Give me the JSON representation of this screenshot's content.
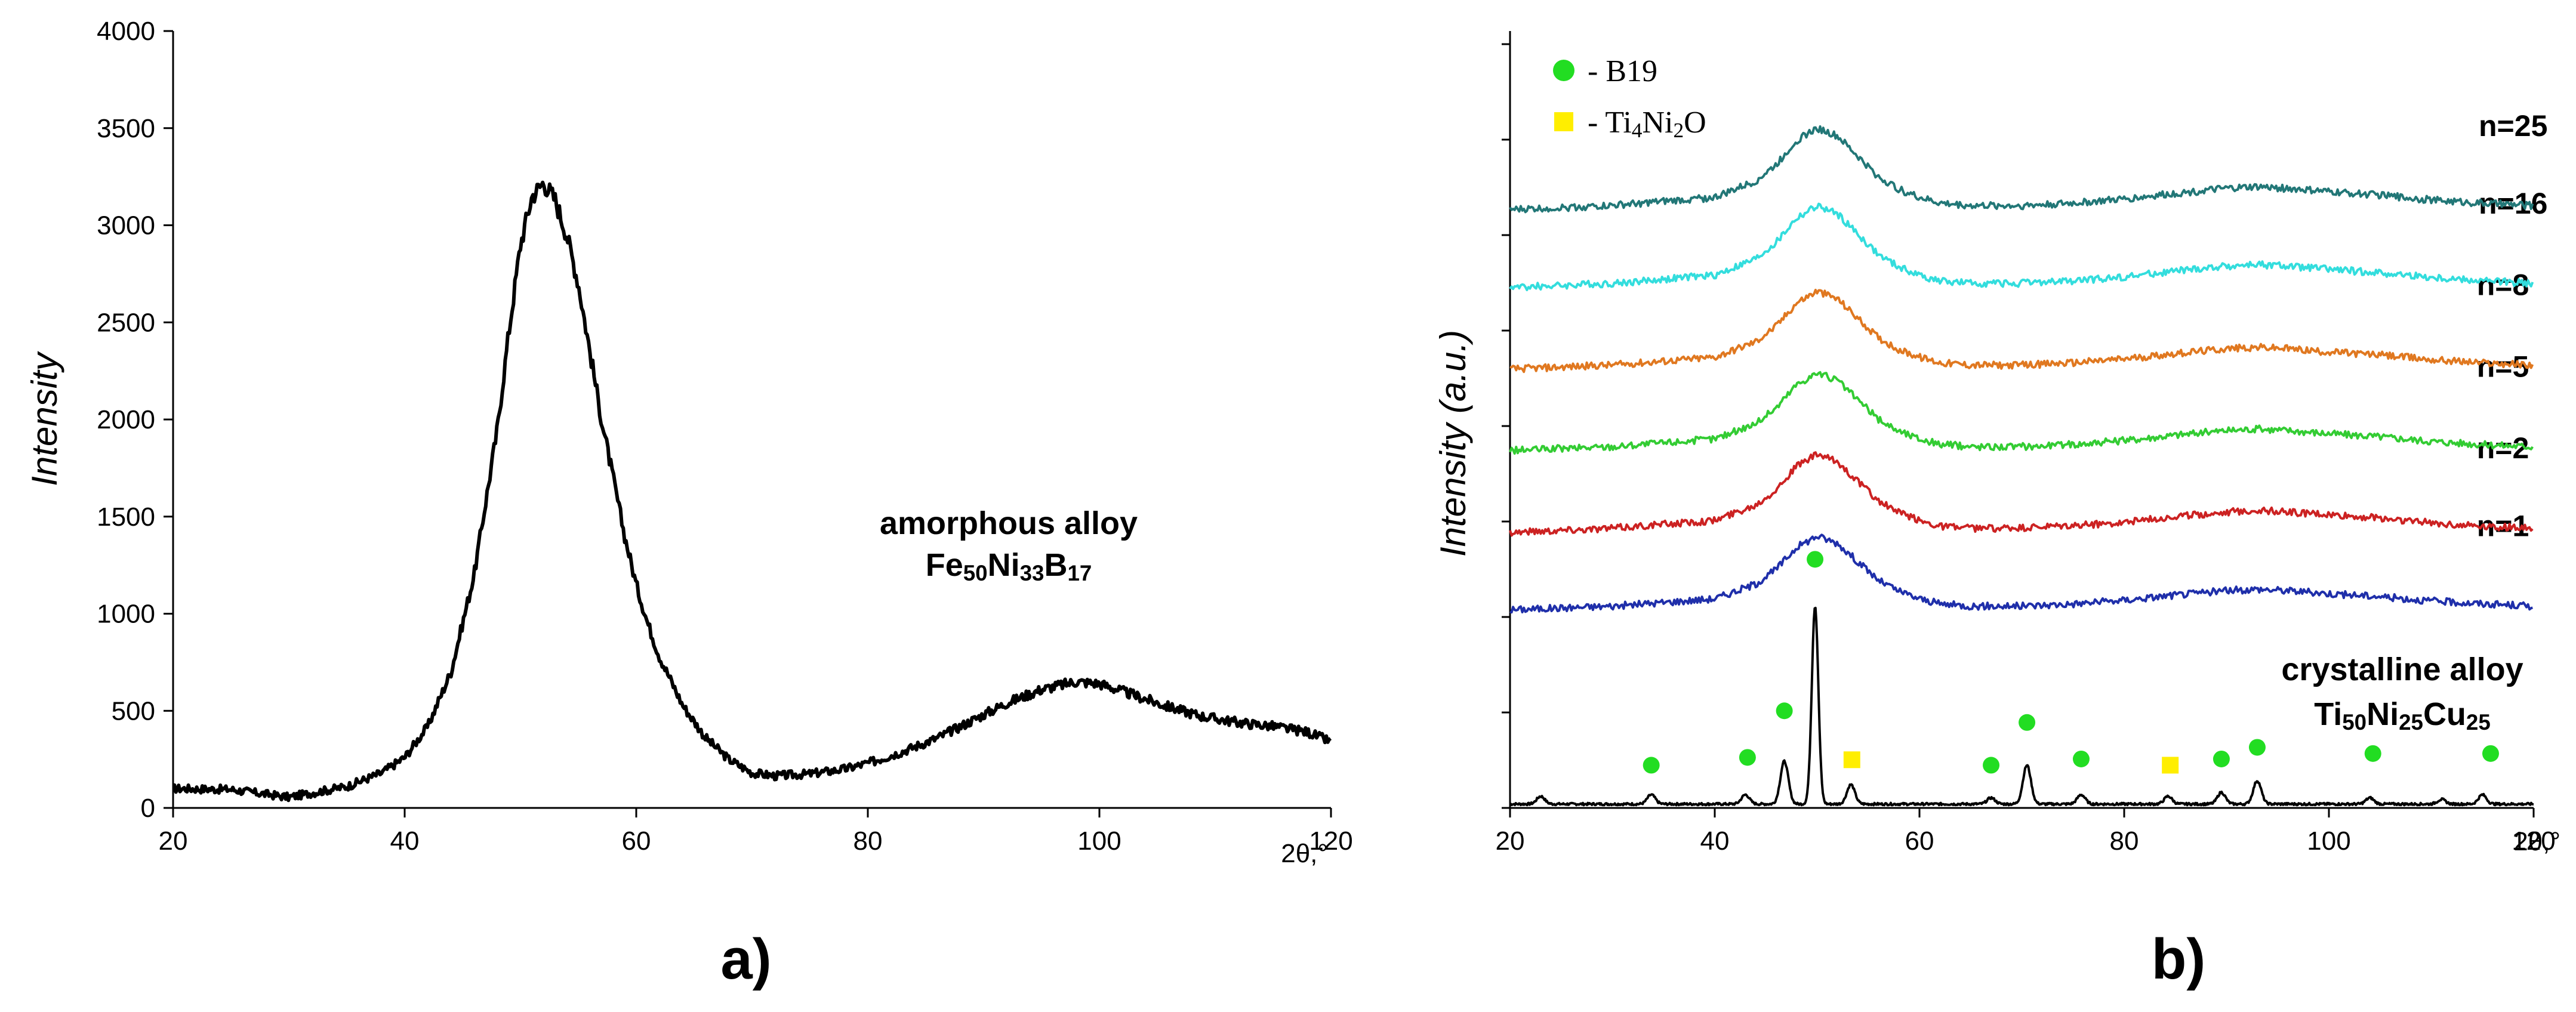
{
  "chart_data": [
    {
      "id": "a",
      "type": "line",
      "panel_label": "a)",
      "ylabel": "Intensity",
      "xlabel": "2θ,°",
      "xlim": [
        20,
        120
      ],
      "ylim": [
        0,
        4000
      ],
      "xticks": [
        20,
        40,
        60,
        80,
        100,
        120
      ],
      "yticks": [
        0,
        500,
        1000,
        1500,
        2000,
        2500,
        3000,
        3500,
        4000
      ],
      "annotation": {
        "line1": "amorphous alloy",
        "line2_parts": [
          {
            "text": "Fe",
            "sub": false
          },
          {
            "text": "50",
            "sub": true
          },
          {
            "text": "Ni",
            "sub": false
          },
          {
            "text": "33",
            "sub": true
          },
          {
            "text": "B",
            "sub": false
          },
          {
            "text": "17",
            "sub": true
          }
        ]
      },
      "series": [
        {
          "name": "Fe50Ni33B17",
          "color": "#000000",
          "x": [
            20,
            25,
            30,
            35,
            38,
            40,
            42,
            44,
            46,
            48,
            49,
            50,
            51,
            52,
            53,
            54,
            55,
            56,
            57,
            58,
            59,
            60,
            61,
            62,
            64,
            66,
            68,
            70,
            72,
            75,
            78,
            80,
            83,
            86,
            89,
            92,
            95,
            98,
            100,
            103,
            106,
            109,
            112,
            115,
            118,
            120
          ],
          "y": [
            100,
            95,
            55,
            110,
            180,
            260,
            420,
            700,
            1200,
            1950,
            2450,
            2900,
            3150,
            3220,
            3130,
            2950,
            2700,
            2350,
            2000,
            1700,
            1400,
            1150,
            950,
            780,
            530,
            360,
            250,
            180,
            165,
            175,
            200,
            230,
            290,
            360,
            450,
            540,
            610,
            650,
            640,
            580,
            520,
            470,
            440,
            420,
            390,
            340
          ]
        }
      ]
    },
    {
      "id": "b",
      "type": "line",
      "panel_label": "b)",
      "ylabel": "Intensity (a.u.)",
      "xlabel": "2θ,°",
      "xlim": [
        20,
        120
      ],
      "ylim": [
        0,
        10
      ],
      "xticks": [
        20,
        40,
        60,
        80,
        100,
        120
      ],
      "legend": [
        {
          "marker": "circle",
          "color": "#22dd22",
          "parts": [
            {
              "text": "- B19",
              "sub": false
            }
          ]
        },
        {
          "marker": "square",
          "color": "#ffee00",
          "parts": [
            {
              "text": "- Ti",
              "sub": false
            },
            {
              "text": "4",
              "sub": true
            },
            {
              "text": "Ni",
              "sub": false
            },
            {
              "text": "2",
              "sub": true
            },
            {
              "text": "O",
              "sub": false
            }
          ]
        }
      ],
      "annotation": {
        "line1": "crystalline alloy",
        "line2_parts": [
          {
            "text": "Ti",
            "sub": false
          },
          {
            "text": "50",
            "sub": true
          },
          {
            "text": "Ni",
            "sub": false
          },
          {
            "text": "25",
            "sub": true
          },
          {
            "text": "Cu",
            "sub": false
          },
          {
            "text": "25",
            "sub": true
          }
        ]
      },
      "amorphous_profile": {
        "x": [
          20,
          30,
          40,
          44,
          46,
          48,
          50,
          52,
          54,
          56,
          58,
          60,
          62,
          65,
          70,
          75,
          80,
          85,
          90,
          93,
          96,
          100,
          105,
          110,
          115,
          120
        ],
        "y": [
          0.0,
          0.05,
          0.15,
          0.35,
          0.55,
          0.85,
          1.0,
          0.9,
          0.65,
          0.4,
          0.25,
          0.15,
          0.08,
          0.05,
          0.05,
          0.08,
          0.13,
          0.2,
          0.26,
          0.28,
          0.26,
          0.22,
          0.18,
          0.12,
          0.08,
          0.05
        ]
      },
      "series": [
        {
          "name": "n=1",
          "label": "n=1",
          "color": "#1f2faa",
          "baseline": 2.55,
          "amplitude": 0.95,
          "label_x": 117
        },
        {
          "name": "n=2",
          "label": "n=2",
          "color": "#cc2222",
          "baseline": 3.55,
          "amplitude": 1.0,
          "label_x": 117
        },
        {
          "name": "n=5",
          "label": "n=5",
          "color": "#33cc33",
          "baseline": 4.6,
          "amplitude": 1.0,
          "label_x": 117
        },
        {
          "name": "n=8",
          "label": "n=8",
          "color": "#e07820",
          "baseline": 5.65,
          "amplitude": 1.0,
          "label_x": 117
        },
        {
          "name": "n=16",
          "label": "n=16",
          "color": "#33dddd",
          "baseline": 6.7,
          "amplitude": 1.05,
          "label_x": 118
        },
        {
          "name": "n=25",
          "label": "n=25",
          "color": "#227777",
          "baseline": 7.7,
          "amplitude": 1.05,
          "label_x": 118
        }
      ],
      "crystalline": {
        "name": "Ti50Ni25Cu25",
        "color": "#000000",
        "baseline": 0.05,
        "peaks": [
          {
            "x": 23.0,
            "h": 0.1
          },
          {
            "x": 33.8,
            "h": 0.12
          },
          {
            "x": 43.0,
            "h": 0.12
          },
          {
            "x": 46.8,
            "h": 0.55
          },
          {
            "x": 49.8,
            "h": 2.55
          },
          {
            "x": 53.3,
            "h": 0.25
          },
          {
            "x": 67.0,
            "h": 0.08
          },
          {
            "x": 70.5,
            "h": 0.5
          },
          {
            "x": 75.8,
            "h": 0.12
          },
          {
            "x": 84.3,
            "h": 0.1
          },
          {
            "x": 89.5,
            "h": 0.15
          },
          {
            "x": 93.0,
            "h": 0.3
          },
          {
            "x": 104.0,
            "h": 0.08
          },
          {
            "x": 111.0,
            "h": 0.06
          },
          {
            "x": 115.0,
            "h": 0.12
          }
        ]
      },
      "phase_markers": [
        {
          "phase": "B19",
          "x": 33.8,
          "y": 0.55
        },
        {
          "phase": "B19",
          "x": 43.2,
          "y": 0.65
        },
        {
          "phase": "B19",
          "x": 46.8,
          "y": 1.25
        },
        {
          "phase": "B19",
          "x": 49.8,
          "y": 3.2
        },
        {
          "phase": "Ti4Ni2O",
          "x": 53.4,
          "y": 0.62
        },
        {
          "phase": "B19",
          "x": 67.0,
          "y": 0.55
        },
        {
          "phase": "B19",
          "x": 70.5,
          "y": 1.1
        },
        {
          "phase": "B19",
          "x": 75.8,
          "y": 0.63
        },
        {
          "phase": "Ti4Ni2O",
          "x": 84.5,
          "y": 0.55
        },
        {
          "phase": "B19",
          "x": 89.5,
          "y": 0.63
        },
        {
          "phase": "B19",
          "x": 93.0,
          "y": 0.78
        },
        {
          "phase": "B19",
          "x": 104.3,
          "y": 0.7
        },
        {
          "phase": "B19",
          "x": 115.8,
          "y": 0.7
        }
      ]
    }
  ]
}
